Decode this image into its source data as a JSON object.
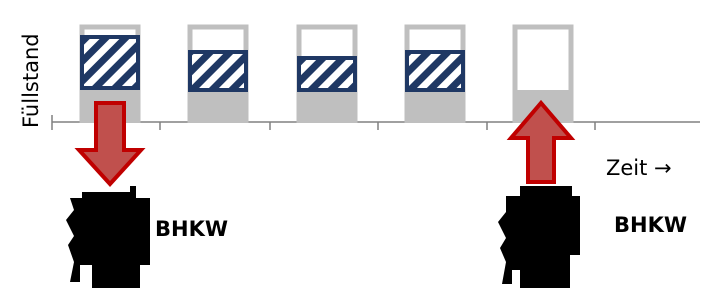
{
  "y_axis_label": "Füllstand",
  "x_axis_label": "Zeit →",
  "labels": [
    "BHKW",
    "BHKW"
  ]
}
